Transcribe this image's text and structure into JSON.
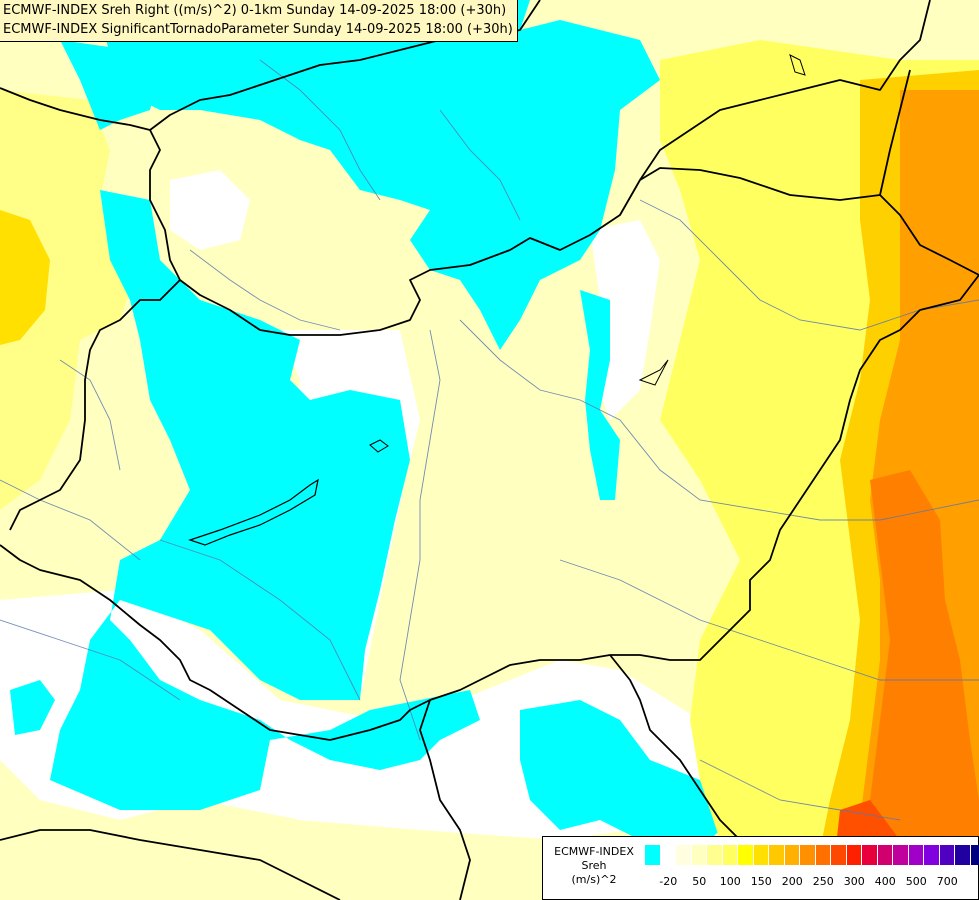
{
  "title": {
    "line1": "ECMWF-INDEX Sreh Right ((m/s)^2) 0-1km Sunday 14-09-2025 18:00 (+30h)",
    "line2": "ECMWF-INDEX SignificantTornadoParameter Sunday 14-09-2025 18:00 (+30h)"
  },
  "legend": {
    "model": "ECMWF-INDEX",
    "variable": "Sreh",
    "unit": "(m/s)^2",
    "colors": [
      "#00ffff",
      "#ffffff",
      "#ffffe0",
      "#ffffc0",
      "#ffff90",
      "#ffff60",
      "#ffff00",
      "#ffe000",
      "#ffc800",
      "#ffb000",
      "#ff9000",
      "#ff7000",
      "#ff4800",
      "#ff2000",
      "#e8003c",
      "#d0006e",
      "#c0009c",
      "#a000c8",
      "#8000e0",
      "#5000c0",
      "#2000a0",
      "#000080"
    ],
    "ticks": [
      "-20",
      "50",
      "100",
      "150",
      "200",
      "250",
      "300",
      "400",
      "500",
      "700"
    ]
  },
  "fill_colors": {
    "cyan": "#00ffff",
    "white": "#ffffff",
    "pale": "#ffffc0",
    "light": "#ffff88",
    "yellow": "#ffff00",
    "gold": "#ffd000",
    "orange": "#ffa000",
    "deep_orange": "#ff8000",
    "red": "#ff5000"
  }
}
